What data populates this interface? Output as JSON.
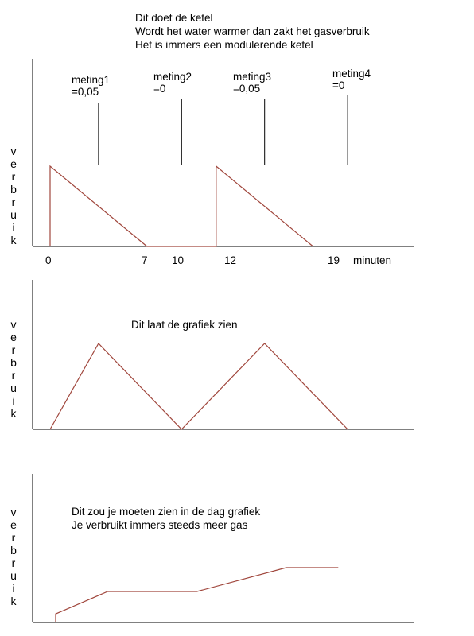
{
  "header": {
    "lines": [
      "Dit doet de ketel",
      "Wordt het water warmer dan zakt het gasverbruik",
      "Het is immers een modulerende ketel"
    ]
  },
  "measurements": [
    {
      "name": "meting1",
      "value": "=0,05"
    },
    {
      "name": "meting2",
      "value": "=0"
    },
    {
      "name": "meting3",
      "value": "=0,05"
    },
    {
      "name": "meting4",
      "value": "=0"
    }
  ],
  "chart_data": [
    {
      "type": "line",
      "ylabel": "verbruik",
      "xlabel": "minuten",
      "x_ticks": [
        "0",
        "7",
        "10",
        "12",
        "19"
      ],
      "x": [
        0,
        0,
        7,
        12,
        12,
        19
      ],
      "y": [
        0,
        1,
        0,
        0,
        1,
        0
      ],
      "marker_x": [
        3.5,
        9.5,
        15.5,
        21.5
      ]
    },
    {
      "type": "line",
      "ylabel": "verbruik",
      "annotation": "Dit laat de grafiek zien",
      "x": [
        0,
        3.5,
        9.5,
        15.5,
        21.5
      ],
      "y": [
        0,
        1,
        0,
        1,
        0
      ]
    },
    {
      "type": "line",
      "ylabel": "verbruik",
      "annotation": [
        "Dit zou je moeten zien in de dag grafiek",
        "Je verbruikt immers steeds meer gas"
      ],
      "x": [
        0,
        0,
        3.5,
        9.5,
        15.5,
        19
      ],
      "y": [
        0,
        0.18,
        0.65,
        0.65,
        1.15,
        1.15
      ]
    }
  ],
  "colors": {
    "line": "#a0463c",
    "axis": "#000000"
  }
}
